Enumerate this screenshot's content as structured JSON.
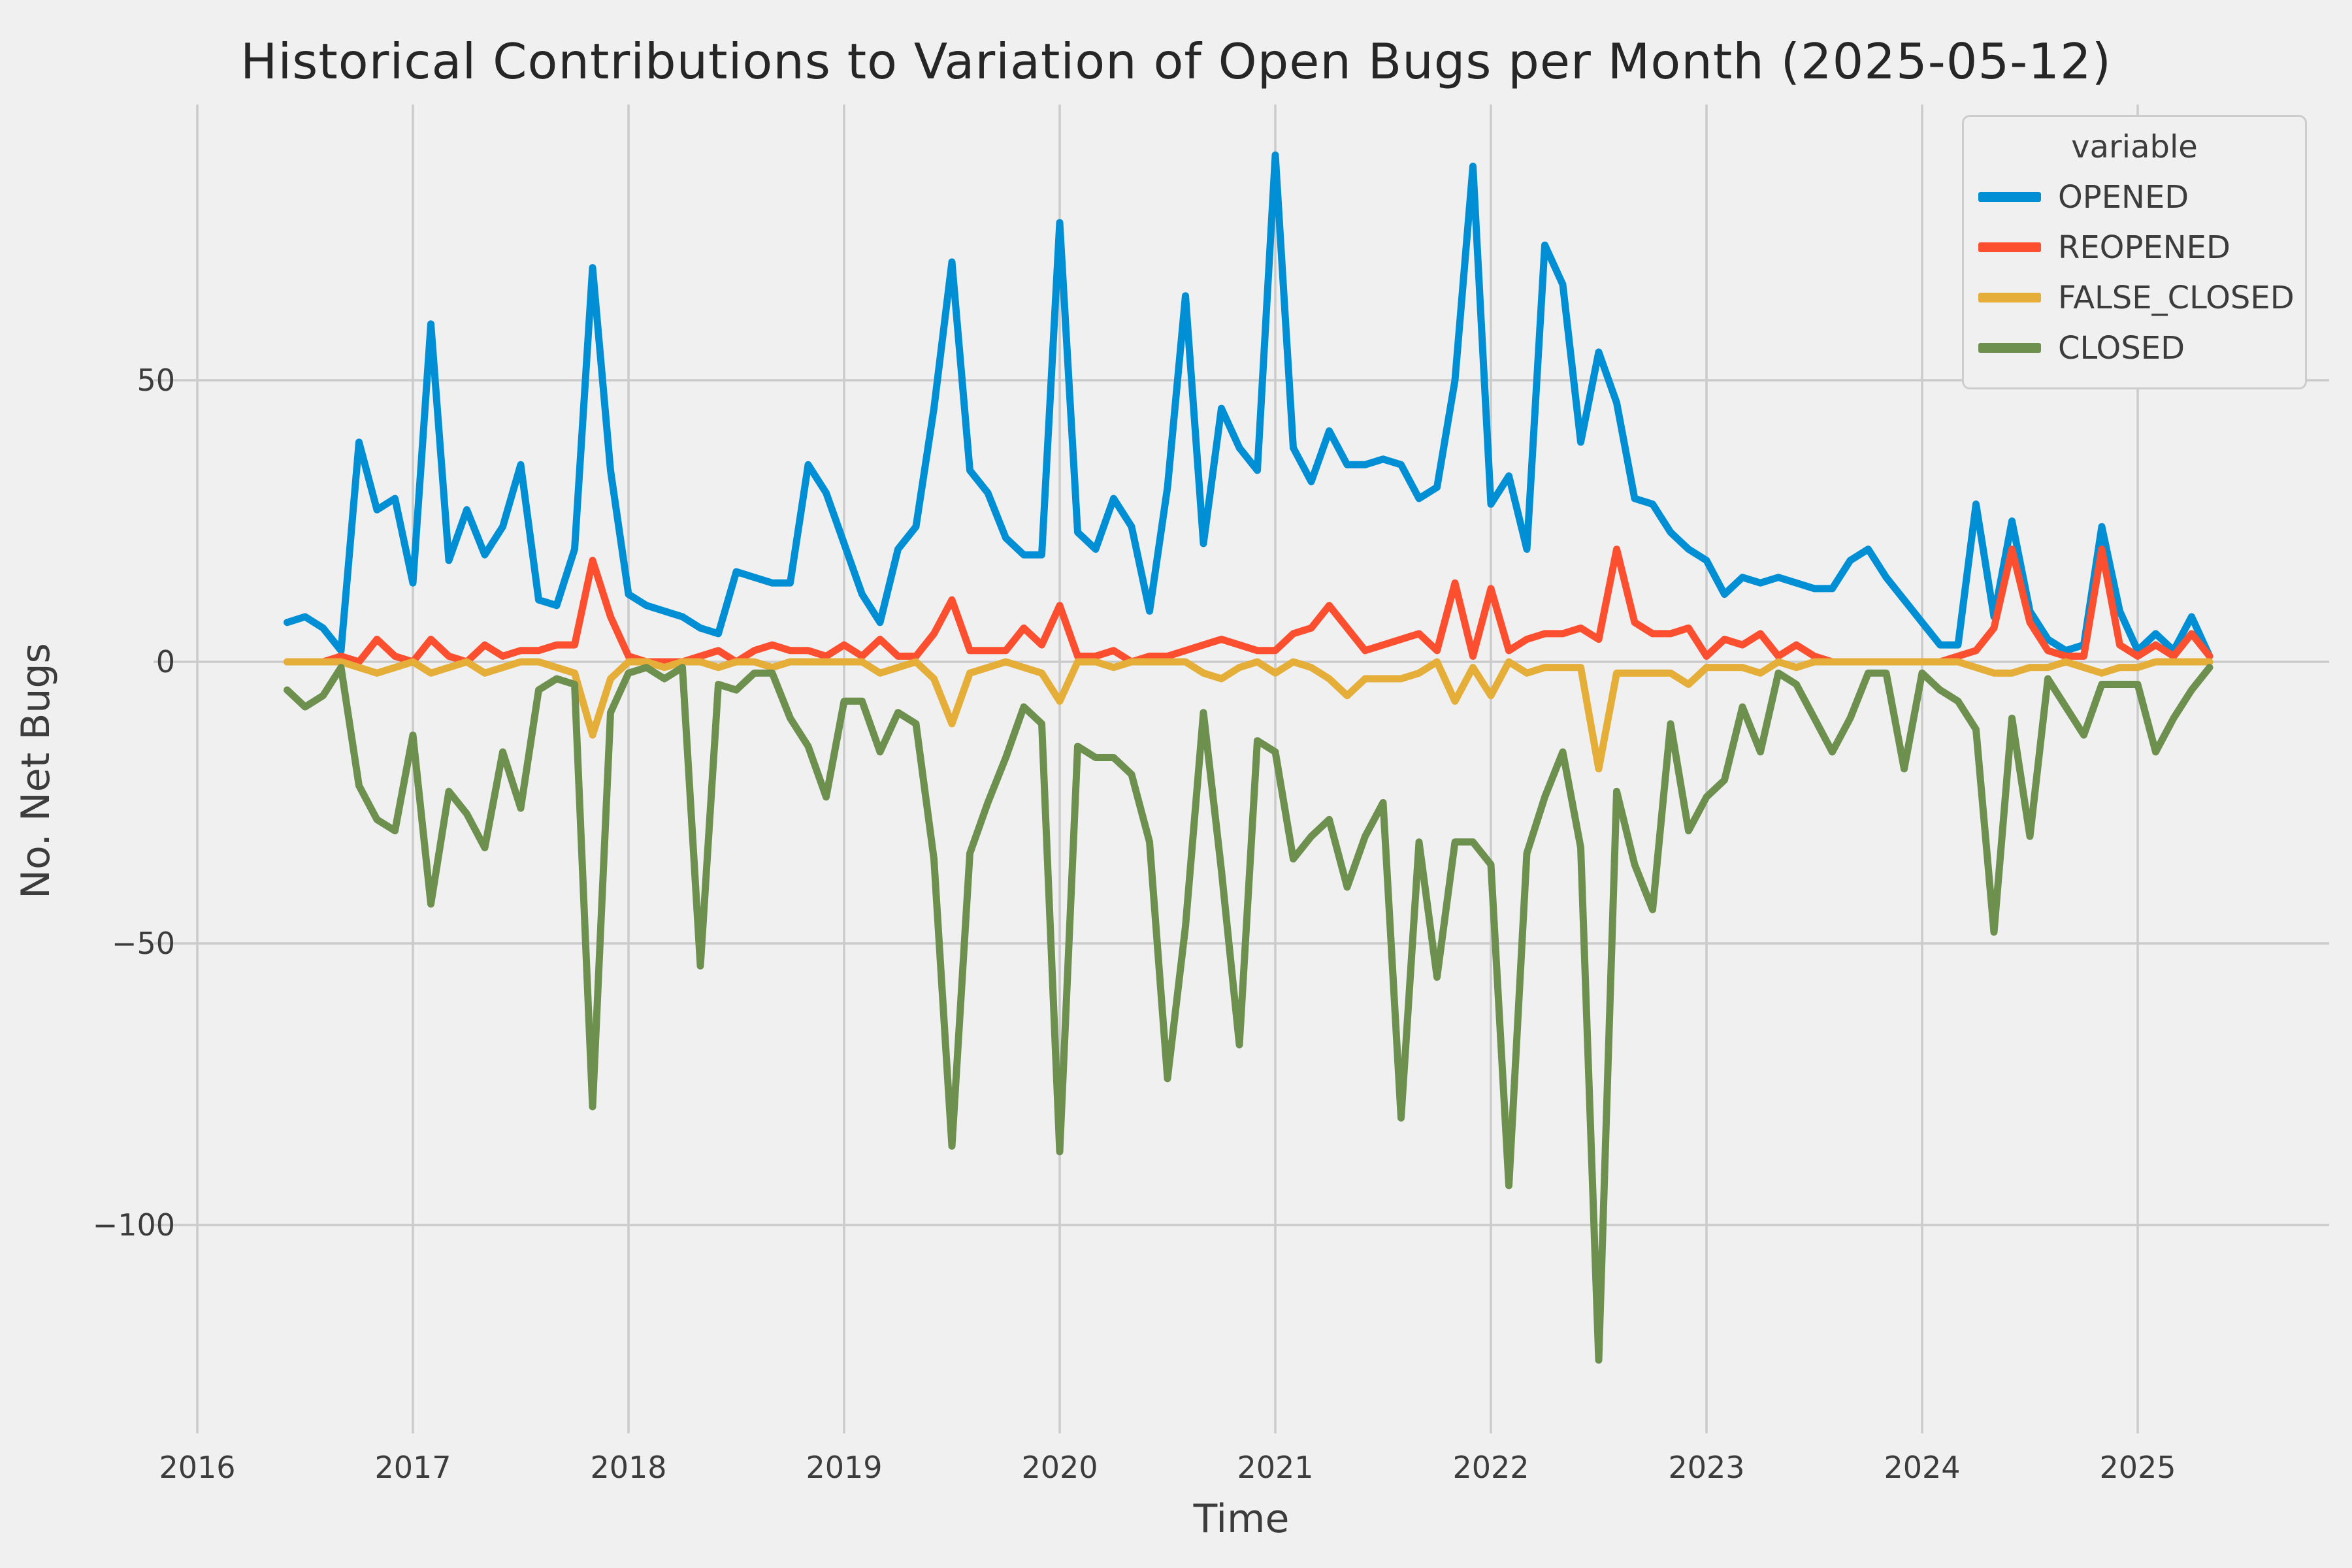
{
  "chart_data": {
    "type": "line",
    "title": "Historical Contributions to Variation of Open Bugs per Month (2025-05-12)",
    "xlabel": "Time",
    "ylabel": "No. Net Bugs",
    "x_start_month": "2016-06",
    "x_end_month": "2025-05",
    "x_tick_labels": [
      "2016",
      "2017",
      "2018",
      "2019",
      "2020",
      "2021",
      "2022",
      "2023",
      "2024",
      "2025"
    ],
    "y_tick_values": [
      50,
      0,
      -50,
      -100
    ],
    "ylim": [
      -137,
      99
    ],
    "grid": true,
    "background_color": "#f0f0f0",
    "gridline_color": "#cbcbcb",
    "text_color": "#3c3c3c",
    "legend_title": "variable",
    "legend_position": "upper right",
    "series": [
      {
        "name": "OPENED",
        "color": "#008fd5",
        "values": [
          7,
          8,
          6,
          2,
          39,
          27,
          29,
          14,
          60,
          18,
          27,
          19,
          24,
          35,
          11,
          10,
          20,
          70,
          34,
          12,
          10,
          9,
          8,
          6,
          5,
          16,
          15,
          14,
          14,
          35,
          30,
          21,
          12,
          7,
          20,
          24,
          45,
          71,
          34,
          30,
          22,
          19,
          19,
          78,
          23,
          20,
          29,
          24,
          9,
          31,
          65,
          21,
          45,
          38,
          34,
          90,
          38,
          32,
          41,
          35,
          35,
          36,
          35,
          29,
          31,
          50,
          88,
          28,
          33,
          20,
          74,
          67,
          39,
          55,
          46,
          29,
          28,
          23,
          20,
          18,
          12,
          15,
          14,
          15,
          14,
          13,
          13,
          18,
          20,
          15,
          11,
          7,
          3,
          3,
          28,
          8,
          25,
          9,
          4,
          2,
          3,
          24,
          9,
          2,
          5,
          2,
          8,
          1
        ]
      },
      {
        "name": "REOPENED",
        "color": "#fc4f30",
        "values": [
          0,
          0,
          0,
          1,
          0,
          4,
          1,
          0,
          4,
          1,
          0,
          3,
          1,
          2,
          2,
          3,
          3,
          18,
          8,
          1,
          0,
          0,
          0,
          1,
          2,
          0,
          2,
          3,
          2,
          2,
          1,
          3,
          1,
          4,
          1,
          1,
          5,
          11,
          2,
          2,
          2,
          6,
          3,
          10,
          1,
          1,
          2,
          0,
          1,
          1,
          2,
          3,
          4,
          3,
          2,
          2,
          5,
          6,
          10,
          6,
          2,
          3,
          4,
          5,
          2,
          14,
          1,
          13,
          2,
          4,
          5,
          5,
          6,
          4,
          20,
          7,
          5,
          5,
          6,
          1,
          4,
          3,
          5,
          1,
          3,
          1,
          0,
          0,
          0,
          0,
          0,
          0,
          0,
          1,
          2,
          6,
          20,
          7,
          2,
          1,
          1,
          20,
          3,
          1,
          3,
          1,
          5,
          1
        ]
      },
      {
        "name": "FALSE_CLOSED",
        "color": "#e5ae38",
        "values": [
          0,
          0,
          0,
          0,
          -1,
          -2,
          -1,
          0,
          -2,
          -1,
          0,
          -2,
          -1,
          0,
          0,
          -1,
          -2,
          -13,
          -3,
          0,
          0,
          -1,
          0,
          0,
          -1,
          0,
          0,
          -1,
          0,
          0,
          0,
          0,
          0,
          -2,
          -1,
          0,
          -3,
          -11,
          -2,
          -1,
          0,
          -1,
          -2,
          -7,
          0,
          0,
          -1,
          0,
          0,
          0,
          0,
          -2,
          -3,
          -1,
          0,
          -2,
          0,
          -1,
          -3,
          -6,
          -3,
          -3,
          -3,
          -2,
          0,
          -7,
          -1,
          -6,
          0,
          -2,
          -1,
          -1,
          -1,
          -19,
          -2,
          -2,
          -2,
          -2,
          -4,
          -1,
          -1,
          -1,
          -2,
          0,
          -1,
          0,
          0,
          0,
          0,
          0,
          0,
          0,
          0,
          0,
          -1,
          -2,
          -2,
          -1,
          -1,
          0,
          -1,
          -2,
          -1,
          -1,
          0,
          0,
          0,
          0
        ]
      },
      {
        "name": "CLOSED",
        "color": "#6d904f",
        "values": [
          -5,
          -8,
          -6,
          -1,
          -22,
          -28,
          -30,
          -13,
          -43,
          -23,
          -27,
          -33,
          -16,
          -26,
          -5,
          -3,
          -4,
          -79,
          -9,
          -2,
          -1,
          -3,
          -1,
          -54,
          -4,
          -5,
          -2,
          -2,
          -10,
          -15,
          -24,
          -7,
          -7,
          -16,
          -9,
          -11,
          -35,
          -86,
          -34,
          -25,
          -17,
          -8,
          -11,
          -87,
          -15,
          -17,
          -17,
          -20,
          -32,
          -74,
          -47,
          -9,
          -37,
          -68,
          -14,
          -16,
          -35,
          -31,
          -28,
          -40,
          -31,
          -25,
          -81,
          -32,
          -56,
          -32,
          -32,
          -36,
          -93,
          -34,
          -24,
          -16,
          -33,
          -124,
          -23,
          -36,
          -44,
          -11,
          -30,
          -24,
          -21,
          -8,
          -16,
          -2,
          -4,
          -10,
          -16,
          -10,
          -2,
          -2,
          -19,
          -2,
          -5,
          -7,
          -12,
          -48,
          -10,
          -31,
          -3,
          -8,
          -13,
          -4,
          -4,
          -4,
          -16,
          -10,
          -5,
          -1
        ]
      }
    ]
  }
}
